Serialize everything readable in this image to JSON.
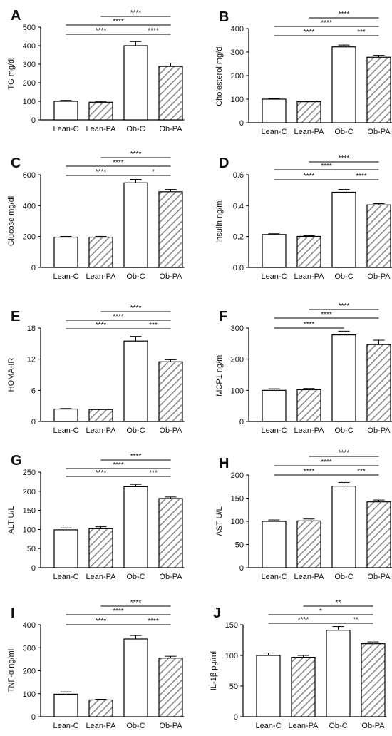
{
  "chart_data": [
    {
      "panel": "A",
      "type": "bar",
      "ylabel": "TG mg/dl",
      "ylim": [
        0,
        500
      ],
      "yticks": [
        "0",
        "100",
        "200",
        "300",
        "400",
        "500"
      ],
      "categories": [
        "Lean-C",
        "Lean-PA",
        "Ob-C",
        "Ob-PA"
      ],
      "values": [
        100,
        95,
        400,
        288
      ],
      "errors": [
        5,
        5,
        22,
        18
      ],
      "significance": [
        {
          "from": "Lean-PA",
          "to": "Ob-PA",
          "label": "****"
        },
        {
          "from": "Lean-C",
          "to": "Ob-PA",
          "label": "****"
        },
        {
          "from": "Lean-C",
          "to": "Ob-C",
          "label": "****"
        },
        {
          "from": "Ob-C",
          "to": "Ob-PA",
          "label": "****"
        }
      ]
    },
    {
      "panel": "B",
      "type": "bar",
      "ylabel": "Cholesterol mg/dl",
      "ylim": [
        0,
        400
      ],
      "yticks": [
        "0",
        "100",
        "200",
        "300",
        "400"
      ],
      "categories": [
        "Lean-C",
        "Lean-PA",
        "Ob-C",
        "Ob-PA"
      ],
      "values": [
        100,
        89,
        322,
        278
      ],
      "errors": [
        3,
        3,
        8,
        8
      ],
      "significance": [
        {
          "from": "Lean-PA",
          "to": "Ob-PA",
          "label": "****"
        },
        {
          "from": "Lean-C",
          "to": "Ob-PA",
          "label": "****"
        },
        {
          "from": "Lean-C",
          "to": "Ob-C",
          "label": "****"
        },
        {
          "from": "Ob-C",
          "to": "Ob-PA",
          "label": "***"
        }
      ]
    },
    {
      "panel": "C",
      "type": "bar",
      "ylabel": "Glucose mg/dl",
      "ylim": [
        0,
        600
      ],
      "yticks": [
        "0",
        "200",
        "400",
        "600"
      ],
      "categories": [
        "Lean-C",
        "Lean-PA",
        "Ob-C",
        "Ob-PA"
      ],
      "values": [
        196,
        196,
        548,
        490
      ],
      "errors": [
        5,
        5,
        22,
        15
      ],
      "significance": [
        {
          "from": "Lean-PA",
          "to": "Ob-PA",
          "label": "****"
        },
        {
          "from": "Lean-C",
          "to": "Ob-PA",
          "label": "****"
        },
        {
          "from": "Lean-C",
          "to": "Ob-C",
          "label": "****"
        },
        {
          "from": "Ob-C",
          "to": "Ob-PA",
          "label": "*"
        }
      ]
    },
    {
      "panel": "D",
      "type": "bar",
      "ylabel": "Insulin ng/ml",
      "ylim": [
        0,
        0.6
      ],
      "yticks": [
        "0.0",
        "0.2",
        "0.4",
        "0.6"
      ],
      "categories": [
        "Lean-C",
        "Lean-PA",
        "Ob-C",
        "Ob-PA"
      ],
      "values": [
        0.213,
        0.201,
        0.487,
        0.405
      ],
      "errors": [
        0.005,
        0.005,
        0.018,
        0.008
      ],
      "significance": [
        {
          "from": "Lean-PA",
          "to": "Ob-PA",
          "label": "****"
        },
        {
          "from": "Lean-C",
          "to": "Ob-PA",
          "label": "****"
        },
        {
          "from": "Lean-C",
          "to": "Ob-C",
          "label": "****"
        },
        {
          "from": "Ob-C",
          "to": "Ob-PA",
          "label": "****"
        }
      ]
    },
    {
      "panel": "E",
      "type": "bar",
      "ylabel": "HOMA-IR",
      "ylim": [
        0,
        18
      ],
      "yticks": [
        "0",
        "6",
        "12",
        "18"
      ],
      "categories": [
        "Lean-C",
        "Lean-PA",
        "Ob-C",
        "Ob-PA"
      ],
      "values": [
        2.4,
        2.3,
        15.5,
        11.5
      ],
      "errors": [
        0.1,
        0.1,
        0.9,
        0.4
      ],
      "significance": [
        {
          "from": "Lean-PA",
          "to": "Ob-PA",
          "label": "****"
        },
        {
          "from": "Lean-C",
          "to": "Ob-PA",
          "label": "****"
        },
        {
          "from": "Lean-C",
          "to": "Ob-C",
          "label": "****"
        },
        {
          "from": "Ob-C",
          "to": "Ob-PA",
          "label": "***"
        }
      ]
    },
    {
      "panel": "F",
      "type": "bar",
      "ylabel": "MCP1 ng/ml",
      "ylim": [
        0,
        300
      ],
      "yticks": [
        "0",
        "100",
        "200",
        "300"
      ],
      "categories": [
        "Lean-C",
        "Lean-PA",
        "Ob-C",
        "Ob-PA"
      ],
      "values": [
        100,
        102,
        278,
        247
      ],
      "errors": [
        5,
        4,
        12,
        14
      ],
      "significance": [
        {
          "from": "Lean-PA",
          "to": "Ob-PA",
          "label": "****"
        },
        {
          "from": "Lean-C",
          "to": "Ob-PA",
          "label": "****"
        },
        {
          "from": "Lean-C",
          "to": "Ob-C",
          "label": "****"
        }
      ]
    },
    {
      "panel": "G",
      "type": "bar",
      "ylabel": "ALT U/L",
      "ylim": [
        0,
        250
      ],
      "yticks": [
        "0",
        "50",
        "100",
        "150",
        "200",
        "250"
      ],
      "categories": [
        "Lean-C",
        "Lean-PA",
        "Ob-C",
        "Ob-PA"
      ],
      "values": [
        99,
        102,
        212,
        181
      ],
      "errors": [
        5,
        5,
        6,
        4
      ],
      "significance": [
        {
          "from": "Lean-PA",
          "to": "Ob-PA",
          "label": "****"
        },
        {
          "from": "Lean-C",
          "to": "Ob-PA",
          "label": "****"
        },
        {
          "from": "Lean-C",
          "to": "Ob-C",
          "label": "****"
        },
        {
          "from": "Ob-C",
          "to": "Ob-PA",
          "label": "***"
        }
      ]
    },
    {
      "panel": "H",
      "type": "bar",
      "ylabel": "AST U/L",
      "ylim": [
        0,
        200
      ],
      "yticks": [
        "0",
        "50",
        "100",
        "150",
        "200"
      ],
      "categories": [
        "Lean-C",
        "Lean-PA",
        "Ob-C",
        "Ob-PA"
      ],
      "values": [
        100,
        101,
        176,
        142
      ],
      "errors": [
        3,
        4,
        8,
        4
      ],
      "significance": [
        {
          "from": "Lean-PA",
          "to": "Ob-PA",
          "label": "****"
        },
        {
          "from": "Lean-C",
          "to": "Ob-PA",
          "label": "****"
        },
        {
          "from": "Lean-C",
          "to": "Ob-C",
          "label": "****"
        },
        {
          "from": "Ob-C",
          "to": "Ob-PA",
          "label": "***"
        }
      ]
    },
    {
      "panel": "I",
      "type": "bar",
      "ylabel": "TNF-α ng/ml",
      "ylim": [
        0,
        400
      ],
      "yticks": [
        "0",
        "100",
        "200",
        "300",
        "400"
      ],
      "categories": [
        "Lean-C",
        "Lean-PA",
        "Ob-C",
        "Ob-PA"
      ],
      "values": [
        98,
        73,
        338,
        255
      ],
      "errors": [
        10,
        3,
        15,
        8
      ],
      "significance": [
        {
          "from": "Lean-PA",
          "to": "Ob-PA",
          "label": "****"
        },
        {
          "from": "Lean-C",
          "to": "Ob-PA",
          "label": "****"
        },
        {
          "from": "Lean-C",
          "to": "Ob-C",
          "label": "****"
        },
        {
          "from": "Ob-C",
          "to": "Ob-PA",
          "label": "****"
        }
      ]
    },
    {
      "panel": "J",
      "type": "bar",
      "ylabel": "IL-1β pg/ml",
      "ylim": [
        0,
        150
      ],
      "yticks": [
        "0",
        "50",
        "100",
        "150"
      ],
      "categories": [
        "Lean-C",
        "Lean-PA",
        "Ob-C",
        "Ob-PA"
      ],
      "values": [
        100,
        97,
        141,
        119
      ],
      "errors": [
        4,
        3,
        6,
        3
      ],
      "significance": [
        {
          "from": "Lean-PA",
          "to": "Ob-PA",
          "label": "**"
        },
        {
          "from": "Lean-C",
          "to": "Ob-PA",
          "label": "*"
        },
        {
          "from": "Lean-C",
          "to": "Ob-C",
          "label": "****"
        },
        {
          "from": "Ob-C",
          "to": "Ob-PA",
          "label": "**"
        }
      ]
    }
  ]
}
